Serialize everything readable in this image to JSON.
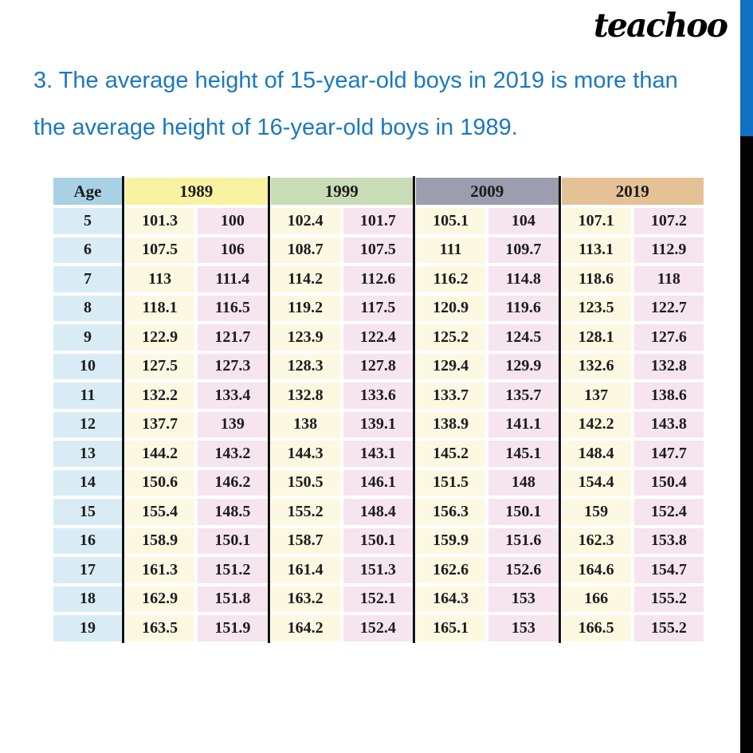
{
  "logo": {
    "text": "teachoo",
    "color": "#000000"
  },
  "heading": {
    "line1": "3. The average height of 15-year-old boys in 2019 is more than",
    "line2": "the average height of 16-year-old boys in 1989.",
    "color": "#1b78c0"
  },
  "side_bars": {
    "blue": "#0f72c2",
    "black": "#030303"
  },
  "table": {
    "age_header": "Age",
    "year_groups": [
      {
        "label": "1989",
        "color": "#faf2a3"
      },
      {
        "label": "1999",
        "color": "#c8dcb5"
      },
      {
        "label": "2009",
        "color": "#9b9eae"
      },
      {
        "label": "2019",
        "color": "#e5c296"
      }
    ],
    "colors": {
      "age_header_bg": "#a8d1e6",
      "age_cell_bg": "#d9ecf6",
      "col1_bg": "#fcf8e2",
      "col2_bg": "#f6e4ee",
      "divider": "#141414",
      "text": "#1c1c1c"
    },
    "rows": [
      {
        "age": "5",
        "values": [
          "101.3",
          "100",
          "102.4",
          "101.7",
          "105.1",
          "104",
          "107.1",
          "107.2"
        ]
      },
      {
        "age": "6",
        "values": [
          "107.5",
          "106",
          "108.7",
          "107.5",
          "111",
          "109.7",
          "113.1",
          "112.9"
        ]
      },
      {
        "age": "7",
        "values": [
          "113",
          "111.4",
          "114.2",
          "112.6",
          "116.2",
          "114.8",
          "118.6",
          "118"
        ]
      },
      {
        "age": "8",
        "values": [
          "118.1",
          "116.5",
          "119.2",
          "117.5",
          "120.9",
          "119.6",
          "123.5",
          "122.7"
        ]
      },
      {
        "age": "9",
        "values": [
          "122.9",
          "121.7",
          "123.9",
          "122.4",
          "125.2",
          "124.5",
          "128.1",
          "127.6"
        ]
      },
      {
        "age": "10",
        "values": [
          "127.5",
          "127.3",
          "128.3",
          "127.8",
          "129.4",
          "129.9",
          "132.6",
          "132.8"
        ]
      },
      {
        "age": "11",
        "values": [
          "132.2",
          "133.4",
          "132.8",
          "133.6",
          "133.7",
          "135.7",
          "137",
          "138.6"
        ]
      },
      {
        "age": "12",
        "values": [
          "137.7",
          "139",
          "138",
          "139.1",
          "138.9",
          "141.1",
          "142.2",
          "143.8"
        ]
      },
      {
        "age": "13",
        "values": [
          "144.2",
          "143.2",
          "144.3",
          "143.1",
          "145.2",
          "145.1",
          "148.4",
          "147.7"
        ]
      },
      {
        "age": "14",
        "values": [
          "150.6",
          "146.2",
          "150.5",
          "146.1",
          "151.5",
          "148",
          "154.4",
          "150.4"
        ]
      },
      {
        "age": "15",
        "values": [
          "155.4",
          "148.5",
          "155.2",
          "148.4",
          "156.3",
          "150.1",
          "159",
          "152.4"
        ]
      },
      {
        "age": "16",
        "values": [
          "158.9",
          "150.1",
          "158.7",
          "150.1",
          "159.9",
          "151.6",
          "162.3",
          "153.8"
        ]
      },
      {
        "age": "17",
        "values": [
          "161.3",
          "151.2",
          "161.4",
          "151.3",
          "162.6",
          "152.6",
          "164.6",
          "154.7"
        ]
      },
      {
        "age": "18",
        "values": [
          "162.9",
          "151.8",
          "163.2",
          "152.1",
          "164.3",
          "153",
          "166",
          "155.2"
        ]
      },
      {
        "age": "19",
        "values": [
          "163.5",
          "151.9",
          "164.2",
          "152.4",
          "165.1",
          "153",
          "166.5",
          "155.2"
        ]
      }
    ]
  }
}
